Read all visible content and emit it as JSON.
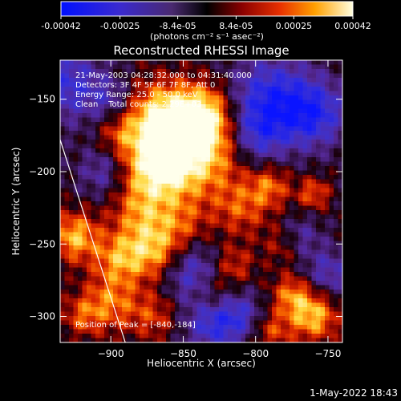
{
  "colorbar": {
    "tick_labels": [
      "-0.00042",
      "-0.00025",
      "-8.4e-05",
      "8.4e-05",
      "0.00025",
      "0.00042"
    ],
    "tick_values": [
      -0.00042,
      -0.00025,
      -8.4e-05,
      8.4e-05,
      0.00025,
      0.00042
    ],
    "range": [
      -0.00042,
      0.00042
    ],
    "units_label": "(photons cm⁻² s⁻¹ asec⁻²)",
    "colors": [
      "#0000ff",
      "#5a2a9a",
      "#000000",
      "#7a0000",
      "#e02000",
      "#ff9000",
      "#ffff60",
      "#ffffff"
    ]
  },
  "chart_data": {
    "type": "heatmap",
    "title": "Reconstructed RHESSI Image",
    "xlabel": "Heliocentric X (arcsec)",
    "ylabel": "Heliocentric Y (arcsec)",
    "xlim": [
      -935,
      -740
    ],
    "ylim": [
      -318,
      -123
    ],
    "xticks": [
      -900,
      -850,
      -800,
      -750
    ],
    "yticks": [
      -150,
      -200,
      -250,
      -300
    ],
    "grid": false,
    "annotations": [
      "21-May-2003 04:28:32.000 to 04:31:40.000",
      "Detectors: 3F 4F 5F 6F 7F 8F, Att 0",
      "Energy Range: 25.0 - 50.0 keV",
      "Clean    Total counts: 2.29E+03"
    ],
    "peak_label": "Position of Peak = [-840,-184]",
    "peak": [
      -840,
      -184
    ],
    "total_counts": 2290,
    "limb_line": {
      "x": [
        -935,
        -890
      ],
      "y": [
        -178,
        -318
      ]
    },
    "intensity_range": [
      -0.00042,
      0.00042
    ]
  },
  "footer": {
    "timestamp": "1-May-2022 18:43"
  }
}
